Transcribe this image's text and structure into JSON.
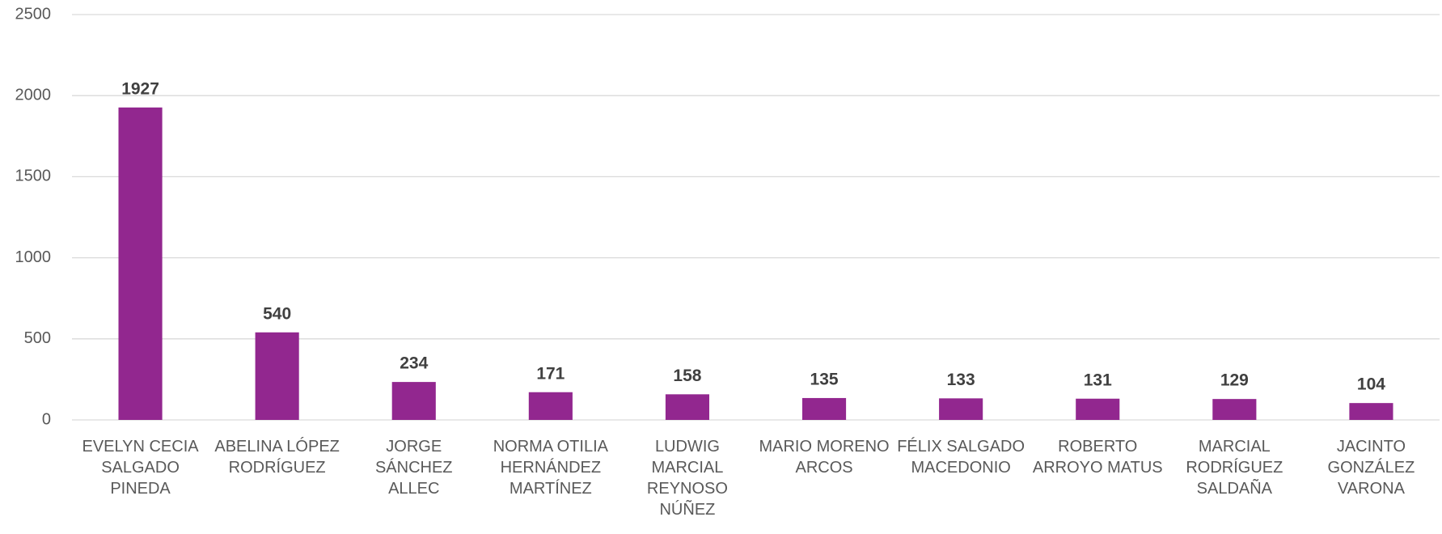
{
  "chart_data": {
    "type": "bar",
    "categories": [
      "EVELYN CECIA SALGADO PINEDA",
      "ABELINA LÓPEZ RODRÍGUEZ",
      "JORGE SÁNCHEZ ALLEC",
      "NORMA OTILIA HERNÁNDEZ MARTÍNEZ",
      "LUDWIG MARCIAL REYNOSO NÚÑEZ",
      "MARIO MORENO ARCOS",
      "FÉLIX SALGADO MACEDONIO",
      "ROBERTO ARROYO MATUS",
      "MARCIAL RODRÍGUEZ SALDAÑA",
      "JACINTO GONZÁLEZ VARONA"
    ],
    "values": [
      1927,
      540,
      234,
      171,
      158,
      135,
      133,
      131,
      129,
      104
    ],
    "color": "#92278f",
    "ylim": [
      0,
      2500
    ],
    "yticks": [
      0,
      500,
      1000,
      1500,
      2000,
      2500
    ],
    "grid": true
  }
}
